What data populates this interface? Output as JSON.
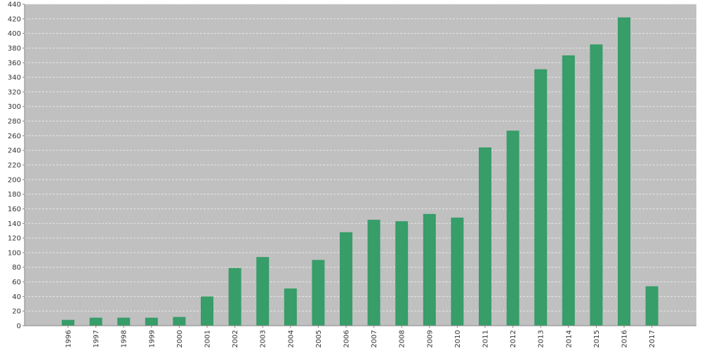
{
  "chart_data": {
    "type": "bar",
    "title": "",
    "xlabel": "",
    "ylabel": "",
    "categories": [
      "1996",
      "1997",
      "1998",
      "1999",
      "2000",
      "2001",
      "2002",
      "2003",
      "2004",
      "2005",
      "2006",
      "2007",
      "2008",
      "2009",
      "2010",
      "2011",
      "2012",
      "2013",
      "2014",
      "2015",
      "2016",
      "2017"
    ],
    "values": [
      8,
      11,
      11,
      11,
      12,
      40,
      79,
      94,
      51,
      90,
      128,
      145,
      143,
      153,
      148,
      244,
      267,
      351,
      370,
      385,
      422,
      54
    ],
    "ylim": [
      0,
      440
    ],
    "ytick_step": 20,
    "grid": true,
    "legend": "none",
    "colors": {
      "bar": "#379d69",
      "plot_background": "#c0c0c0",
      "grid": "#e6e6e6",
      "axis": "#888888"
    }
  }
}
